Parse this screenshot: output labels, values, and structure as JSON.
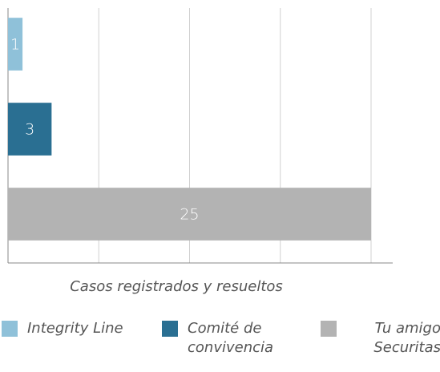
{
  "chart_data": {
    "type": "bar",
    "orientation": "horizontal",
    "x_label": "Casos registrados y resueltos",
    "series": [
      {
        "name": "Integrity Line",
        "color": "#8fc1d9",
        "values": [
          1
        ]
      },
      {
        "name": "Comité de convivencia",
        "color": "#2a6f92",
        "values": [
          3
        ]
      },
      {
        "name": "Tu amigo Securitas",
        "color": "#b3b3b3",
        "values": [
          25
        ]
      }
    ],
    "xlim": [
      0,
      25
    ],
    "xticks": [
      0,
      6.25,
      12.5,
      18.75,
      25
    ],
    "grid": true,
    "legend": "bottom"
  }
}
